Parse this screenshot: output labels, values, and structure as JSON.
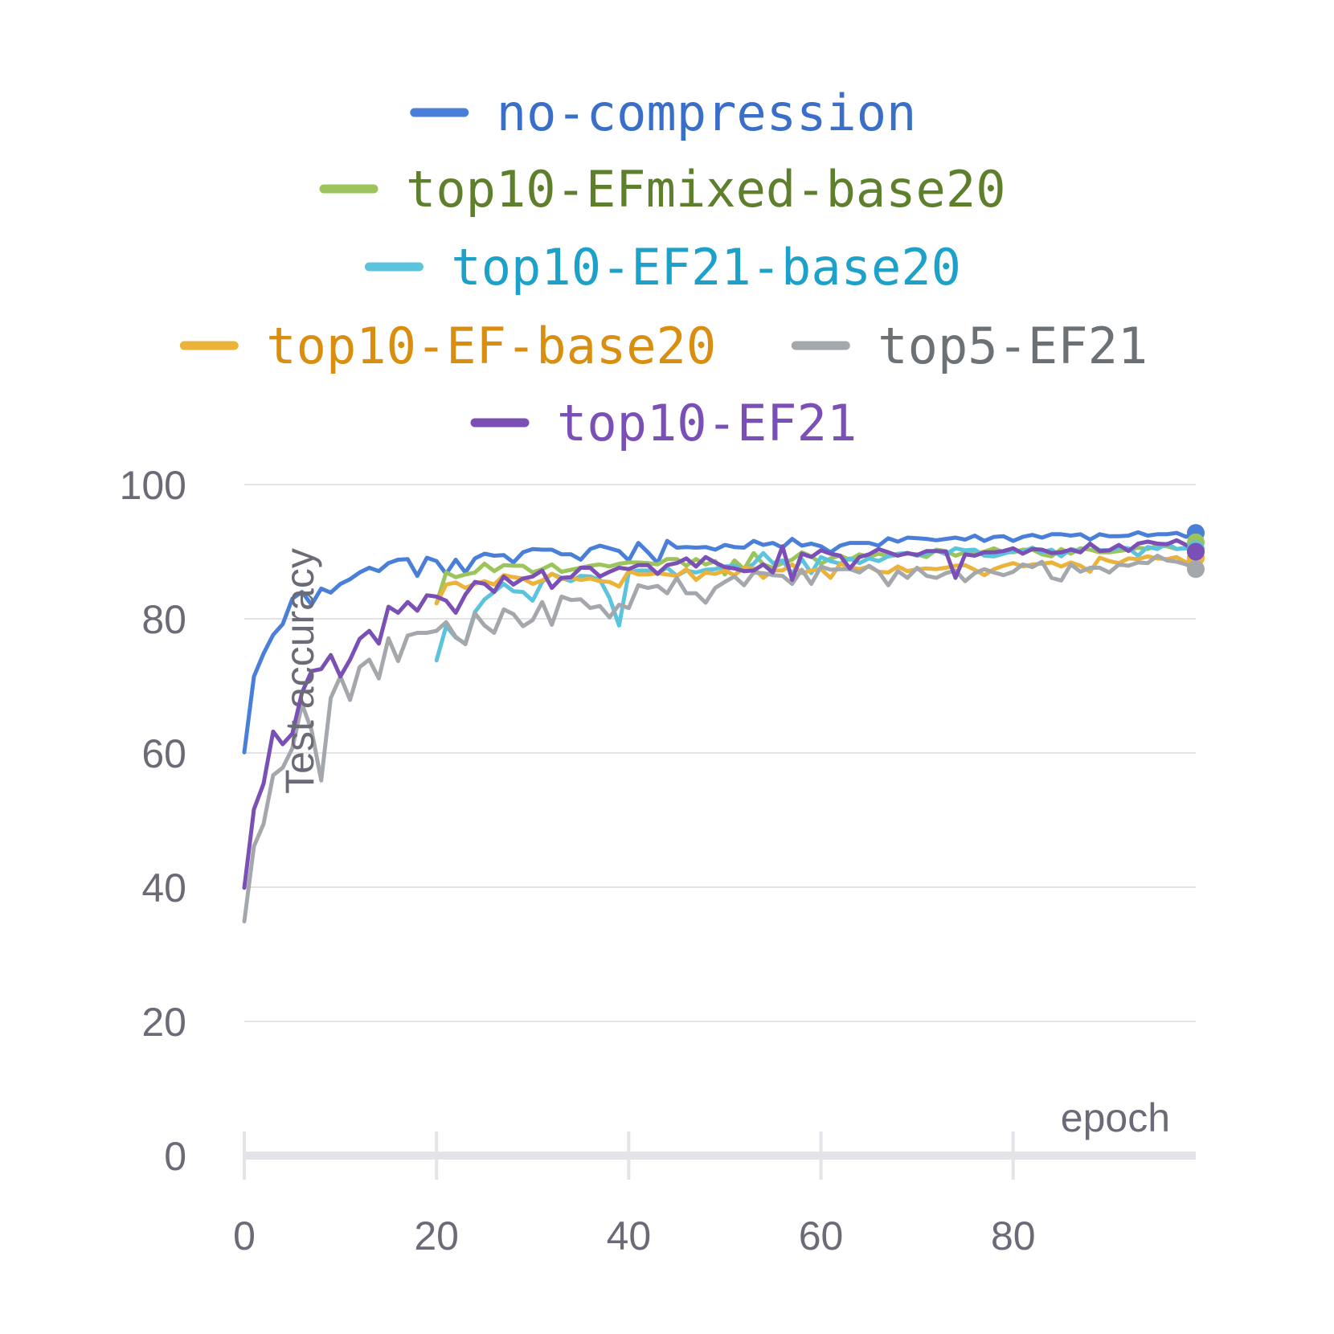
{
  "chart_data": {
    "type": "line",
    "xlabel": "epoch",
    "ylabel": "Test accuracy",
    "xlim": [
      0,
      99
    ],
    "ylim": [
      0,
      100
    ],
    "x_ticks": [
      "0",
      "20",
      "40",
      "60",
      "80"
    ],
    "y_ticks": [
      "0",
      "20",
      "40",
      "60",
      "80",
      "100"
    ],
    "grid": true,
    "legend_position": "top",
    "series": [
      {
        "name": "no-compression",
        "color": "#4a7fd9",
        "text_color": "#3a6fc9",
        "start": 0,
        "values": [
          60.1,
          71.4,
          74.8,
          77.6,
          79.2,
          83.0,
          84.0,
          82.1,
          84.5,
          83.9,
          85.2,
          85.9,
          86.9,
          87.6,
          87.1,
          88.3,
          88.8,
          88.9,
          86.4,
          89.1,
          88.6,
          86.7,
          88.8,
          86.9,
          89.0,
          89.7,
          89.4,
          89.5,
          88.4,
          89.9,
          90.4,
          90.3,
          90.3,
          89.6,
          89.6,
          88.8,
          90.4,
          90.9,
          90.5,
          90.1,
          88.7,
          91.3,
          89.9,
          88.3,
          91.6,
          90.6,
          90.7,
          90.6,
          90.7,
          90.3,
          91.0,
          90.7,
          90.6,
          91.6,
          91.0,
          91.3,
          90.6,
          91.9,
          90.9,
          91.2,
          90.8,
          89.9,
          90.9,
          91.3,
          91.3,
          91.3,
          90.9,
          92.0,
          91.5,
          92.1,
          92.0,
          91.9,
          91.7,
          91.9,
          92.1,
          91.8,
          92.4,
          91.6,
          92.2,
          92.3,
          91.6,
          92.2,
          92.5,
          92.1,
          92.6,
          92.6,
          92.4,
          92.6,
          91.8,
          92.6,
          92.3,
          92.3,
          92.4,
          92.9,
          92.4,
          92.6,
          92.6,
          92.8,
          92.2,
          92.8
        ]
      },
      {
        "name": "top10-EFmixed-base20",
        "color": "#9bc45a",
        "text_color": "#5e7f2b",
        "start": 20,
        "values": [
          82.3,
          86.9,
          86.2,
          86.6,
          86.9,
          88.2,
          87.1,
          88.0,
          87.9,
          87.9,
          86.9,
          87.4,
          88.1,
          87.0,
          87.3,
          87.6,
          87.9,
          88.1,
          87.8,
          88.2,
          88.4,
          88.4,
          88.3,
          88.1,
          88.9,
          88.9,
          87.9,
          88.9,
          88.1,
          88.6,
          86.6,
          88.7,
          87.4,
          89.8,
          88.1,
          87.6,
          88.3,
          88.8,
          89.9,
          89.3,
          88.2,
          89.0,
          89.4,
          88.8,
          89.6,
          89.2,
          89.7,
          89.3,
          89.5,
          89.7,
          89.6,
          89.2,
          90.3,
          90.1,
          89.4,
          89.9,
          89.7,
          90.0,
          90.5,
          89.9,
          89.9,
          90.3,
          90.3,
          89.6,
          89.3,
          90.4,
          89.7,
          90.5,
          90.3,
          89.9,
          89.9,
          90.1,
          90.3,
          90.6,
          90.4,
          90.9,
          90.8,
          90.4,
          90.6,
          91.4
        ]
      },
      {
        "name": "top10-EF21-base20",
        "color": "#5bc3dc",
        "text_color": "#1ea1c9",
        "start": 20,
        "values": [
          73.8,
          78.9,
          77.2,
          76.3,
          81.0,
          82.9,
          84.0,
          85.2,
          84.1,
          84.0,
          82.7,
          85.5,
          86.7,
          86.1,
          85.6,
          86.4,
          86.3,
          85.8,
          83.1,
          79.0,
          86.9,
          87.2,
          87.2,
          86.8,
          87.6,
          86.4,
          87.2,
          86.9,
          87.3,
          87.4,
          87.8,
          87.9,
          87.3,
          88.2,
          89.8,
          88.3,
          88.7,
          86.7,
          88.9,
          86.8,
          89.2,
          88.6,
          88.2,
          89.0,
          88.3,
          89.0,
          88.6,
          89.3,
          89.7,
          89.8,
          89.4,
          89.7,
          90.2,
          89.6,
          90.5,
          90.2,
          90.3,
          89.4,
          89.3,
          89.7,
          90.1,
          90.0,
          90.6,
          89.9,
          90.3,
          89.3,
          90.4,
          90.1,
          91.1,
          90.2,
          90.2,
          90.6,
          90.5,
          89.4,
          90.7,
          90.4,
          91.2,
          90.4,
          90.5,
          90.4
        ]
      },
      {
        "name": "top10-EF-base20",
        "color": "#ebb33a",
        "text_color": "#d98e0f",
        "start": 20,
        "values": [
          82.3,
          85.1,
          85.4,
          84.6,
          85.2,
          85.6,
          85.1,
          86.5,
          86.2,
          86.0,
          85.2,
          85.7,
          86.7,
          85.9,
          86.1,
          85.8,
          86.0,
          85.6,
          85.5,
          84.8,
          87.1,
          86.6,
          86.6,
          86.8,
          86.6,
          86.4,
          87.4,
          85.8,
          86.9,
          86.7,
          87.2,
          86.5,
          87.6,
          87.5,
          86.1,
          87.2,
          87.2,
          88.1,
          86.8,
          87.2,
          87.4,
          86.1,
          88.2,
          87.7,
          87.4,
          87.8,
          87.0,
          86.9,
          87.8,
          87.1,
          87.4,
          87.5,
          87.4,
          87.6,
          87.9,
          88.0,
          87.3,
          86.5,
          87.4,
          87.9,
          88.3,
          87.8,
          88.1,
          88.2,
          88.4,
          87.8,
          88.4,
          87.9,
          87.0,
          89.1,
          88.6,
          88.3,
          89.0,
          88.9,
          89.3,
          89.0,
          88.9,
          89.2,
          88.4,
          89.1
        ]
      },
      {
        "name": "top5-EF21",
        "color": "#a4a8ac",
        "text_color": "#6c7176",
        "start": 0,
        "values": [
          34.9,
          46.1,
          49.4,
          56.7,
          57.8,
          60.7,
          67.3,
          63.4,
          55.9,
          68.2,
          71.4,
          67.9,
          72.8,
          73.9,
          71.1,
          77.1,
          73.7,
          77.5,
          77.9,
          77.9,
          78.2,
          79.5,
          77.3,
          76.2,
          80.8,
          79.0,
          77.9,
          81.4,
          80.7,
          78.9,
          79.8,
          82.5,
          79.1,
          83.3,
          82.8,
          82.9,
          81.6,
          81.9,
          80.2,
          82.1,
          81.6,
          85.0,
          84.6,
          84.9,
          83.8,
          86.1,
          83.8,
          83.8,
          82.4,
          84.6,
          85.5,
          86.3,
          85.0,
          86.9,
          86.8,
          86.5,
          86.4,
          85.2,
          87.3,
          85.2,
          87.8,
          87.3,
          87.4,
          87.4,
          86.9,
          87.9,
          87.0,
          85.0,
          87.1,
          86.1,
          87.6,
          86.4,
          86.1,
          86.8,
          87.2,
          85.6,
          86.8,
          87.4,
          86.9,
          86.5,
          87.0,
          88.1,
          87.7,
          88.5,
          86.1,
          85.7,
          88.1,
          87.0,
          87.6,
          87.6,
          86.9,
          88.1,
          87.9,
          88.4,
          88.3,
          89.4,
          88.7,
          88.5,
          88.1,
          87.4
        ]
      },
      {
        "name": "top10-EF21",
        "color": "#7a4fb6",
        "text_color": "#7a4fb6",
        "start": 0,
        "values": [
          39.9,
          51.6,
          55.4,
          63.2,
          61.3,
          62.9,
          69.0,
          72.2,
          72.5,
          74.6,
          71.4,
          73.9,
          77.0,
          78.2,
          76.3,
          81.8,
          80.9,
          82.5,
          81.2,
          83.5,
          83.3,
          82.7,
          80.9,
          83.6,
          85.5,
          85.2,
          84.0,
          86.3,
          85.1,
          86.0,
          86.3,
          87.2,
          84.6,
          86.1,
          86.2,
          87.6,
          87.6,
          86.3,
          87.0,
          87.6,
          87.4,
          88.0,
          88.0,
          86.7,
          88.0,
          88.3,
          89.0,
          87.8,
          89.2,
          88.4,
          87.7,
          87.5,
          87.1,
          87.2,
          88.1,
          86.9,
          90.8,
          85.8,
          89.7,
          89.2,
          90.2,
          89.7,
          89.4,
          87.5,
          89.2,
          89.6,
          90.4,
          89.9,
          89.4,
          89.8,
          89.5,
          90.1,
          90.1,
          90.0,
          86.1,
          89.6,
          89.4,
          89.9,
          89.9,
          90.1,
          90.5,
          89.7,
          90.4,
          90.3,
          89.8,
          89.9,
          90.3,
          89.9,
          91.2,
          90.1,
          90.2,
          91.0,
          90.1,
          91.2,
          91.5,
          91.2,
          91.1,
          91.7,
          91.0,
          90.0
        ]
      }
    ]
  }
}
